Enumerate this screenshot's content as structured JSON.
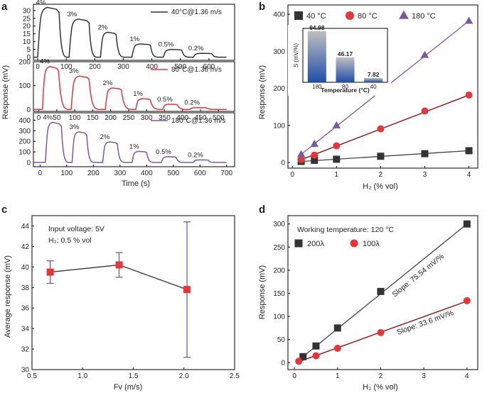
{
  "panel_labels": {
    "a": "a",
    "b": "b",
    "c": "c",
    "d": "d"
  },
  "colors": {
    "black": "#333333",
    "red": "#e8353a",
    "purple": "#7a5a9e",
    "darkred": "#8b0000",
    "bar_top": "#bfbfbf",
    "bar_bottom": "#1f4ea8"
  },
  "chart_data": [
    {
      "panel": "a",
      "type": "line",
      "xlabel": "Time (s)",
      "ylabel": "Response (mV)",
      "pulse_labels": [
        "4%",
        "3%",
        "2%",
        "1%",
        "0.5%",
        "0.2%"
      ],
      "subplots": [
        {
          "legend": "40°C@1.36 m/s",
          "xlim": [
            -15,
            690
          ],
          "ylim": [
            -2,
            34
          ],
          "xticks": [
            0,
            100,
            200,
            300,
            400,
            500,
            600
          ],
          "yticks": [
            0,
            5,
            10,
            15,
            20,
            25,
            30
          ],
          "pulses": [
            {
              "start": 0,
              "end": 75,
              "peak": 32
            },
            {
              "start": 110,
              "end": 180,
              "peak": 24.5
            },
            {
              "start": 220,
              "end": 275,
              "peak": 16
            },
            {
              "start": 330,
              "end": 395,
              "peak": 8.5
            },
            {
              "start": 440,
              "end": 505,
              "peak": 5
            },
            {
              "start": 545,
              "end": 610,
              "peak": 2.5
            }
          ]
        },
        {
          "legend": "80°C@1.36 m/s",
          "xlim": [
            -15,
            545
          ],
          "ylim": [
            -8,
            200
          ],
          "xticks": [
            0,
            50,
            100,
            150,
            200,
            250,
            300,
            350,
            400,
            450,
            500
          ],
          "yticks": [
            0,
            100,
            200
          ],
          "pulses": [
            {
              "start": 10,
              "end": 55,
              "peak": 180
            },
            {
              "start": 90,
              "end": 140,
              "peak": 140
            },
            {
              "start": 185,
              "end": 230,
              "peak": 90
            },
            {
              "start": 270,
              "end": 310,
              "peak": 45
            },
            {
              "start": 345,
              "end": 385,
              "peak": 22
            },
            {
              "start": 420,
              "end": 465,
              "peak": 8
            }
          ]
        },
        {
          "legend": "180°C@1.36 m/s",
          "xlim": [
            -25,
            730
          ],
          "ylim": [
            -40,
            470
          ],
          "xticks": [
            0,
            100,
            200,
            300,
            400,
            500,
            600,
            700
          ],
          "yticks": [
            0,
            100,
            200,
            300,
            400
          ],
          "pulses": [
            {
              "start": 20,
              "end": 80,
              "peak": 380
            },
            {
              "start": 120,
              "end": 175,
              "peak": 290
            },
            {
              "start": 235,
              "end": 290,
              "peak": 195
            },
            {
              "start": 345,
              "end": 400,
              "peak": 105
            },
            {
              "start": 455,
              "end": 510,
              "peak": 55
            },
            {
              "start": 575,
              "end": 630,
              "peak": 25
            }
          ]
        }
      ]
    },
    {
      "panel": "b",
      "type": "scatter",
      "xlabel": "H₂ (% vol)",
      "ylabel": "Response (mV)",
      "xlim": [
        -0.1,
        4.2
      ],
      "ylim": [
        -15,
        425
      ],
      "xticks": [
        0,
        1,
        2,
        3,
        4
      ],
      "yticks": [
        0,
        100,
        200,
        300,
        400
      ],
      "x": [
        0.2,
        0.5,
        1,
        2,
        3,
        4
      ],
      "series": [
        {
          "name": "40 °C",
          "marker": "square",
          "color": "#333333",
          "line": "#444444",
          "values": [
            3,
            6,
            9,
            17,
            24,
            32
          ]
        },
        {
          "name": "80 °C",
          "marker": "circle",
          "color": "#e8353a",
          "line": "#8b0000",
          "values": [
            8,
            20,
            45,
            91,
            139,
            182
          ]
        },
        {
          "name": "180 °C",
          "marker": "triangle",
          "color": "#7a5a9e",
          "line": "#7a5a9e",
          "values": [
            22,
            50,
            100,
            197,
            290,
            382
          ]
        }
      ],
      "inset": {
        "type": "bar",
        "xlabel": "Temperature (°C)",
        "ylabel": "S (mV/%)",
        "categories": [
          "180",
          "80",
          "40"
        ],
        "values": [
          94.98,
          46.17,
          7.82
        ],
        "value_labels": [
          "94.98",
          "46.17",
          "7.82"
        ],
        "ylim": [
          0,
          100
        ],
        "yticks": [
          0,
          20,
          40,
          60,
          80,
          100
        ]
      }
    },
    {
      "panel": "c",
      "type": "line",
      "xlabel": "Fv (m/s)",
      "ylabel": "Average response (mV)",
      "xlim": [
        0.5,
        2.5
      ],
      "ylim": [
        30,
        45
      ],
      "xticks": [
        0.5,
        1.0,
        1.5,
        2.0,
        2.5
      ],
      "xtick_labels": [
        "0.5",
        "1.0",
        "1.5",
        "2.0",
        "2.5"
      ],
      "yticks": [
        30,
        32,
        34,
        36,
        38,
        40,
        42,
        44
      ],
      "x": [
        0.68,
        1.36,
        2.03
      ],
      "values": [
        39.5,
        40.2,
        37.8
      ],
      "errors": [
        1.1,
        1.2,
        6.6
      ],
      "annotations": [
        "Input voltage: 5V",
        "H₂: 0.5 % vol"
      ]
    },
    {
      "panel": "d",
      "type": "scatter",
      "xlabel": "H₂ (% vol)",
      "ylabel": "Response (mV)",
      "xlim": [
        -0.15,
        4.25
      ],
      "ylim": [
        -15,
        318
      ],
      "xticks": [
        0,
        1,
        2,
        3,
        4
      ],
      "yticks": [
        0,
        50,
        100,
        150,
        200,
        250,
        300
      ],
      "annotation": "Working temperature: 120 °C",
      "series": [
        {
          "name": "200λ",
          "marker": "square",
          "color": "#333333",
          "line": "#444444",
          "x": [
            0.2,
            0.5,
            1,
            2,
            4
          ],
          "values": [
            13,
            36,
            75,
            154,
            300
          ],
          "fit_x": [
            0.2,
            4
          ],
          "fit_y": [
            13,
            300
          ],
          "slope_label": "Slope: 75.54 mV/%"
        },
        {
          "name": "100λ",
          "marker": "circle",
          "color": "#e8353a",
          "line": "#8b0000",
          "x": [
            0.1,
            0.5,
            1,
            2,
            4
          ],
          "values": [
            3,
            15,
            31,
            65,
            134
          ],
          "fit_x": [
            0.1,
            4
          ],
          "fit_y": [
            2,
            133
          ],
          "slope_label": "Slope: 33.6 mV/%"
        }
      ]
    }
  ]
}
